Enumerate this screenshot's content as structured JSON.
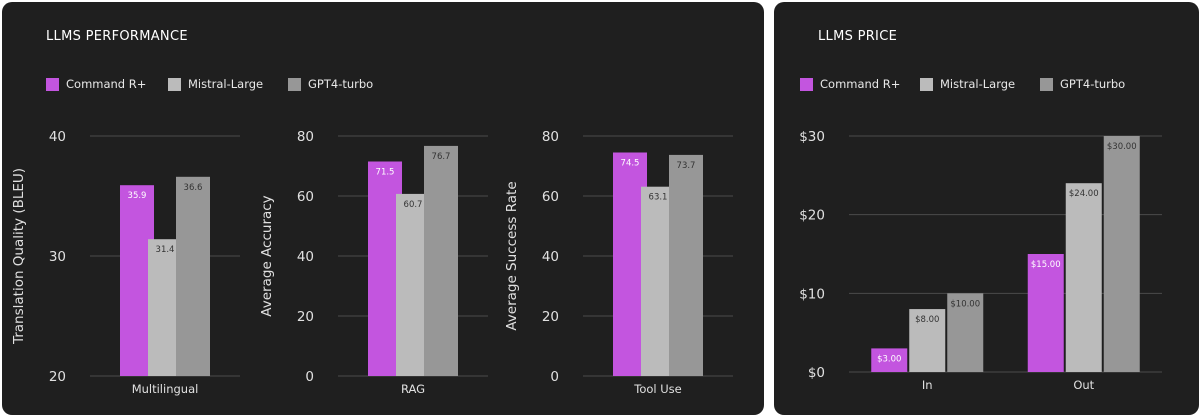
{
  "colors": {
    "command_r_plus": "#c355df",
    "mistral_large": "#bbbbbb",
    "gpt4_turbo": "#979797",
    "grid": "#4b4b4b",
    "axis_text": "#e0e0e0",
    "bar_label_light": "#ffffff",
    "bar_label_dark": "#333333"
  },
  "performance": {
    "title": "LLMS PERFORMANCE",
    "legend": [
      "Command R+",
      "Mistral-Large",
      "GPT4-turbo"
    ]
  },
  "price": {
    "title": "LLMS PRICE",
    "legend": [
      "Command R+",
      "Mistral-Large",
      "GPT4-turbo"
    ]
  },
  "chart_data": [
    {
      "type": "bar",
      "title": "",
      "xlabel": "",
      "ylabel": "Translation Quality (BLEU)",
      "categories": [
        "Multilingual"
      ],
      "ylim": [
        20,
        40
      ],
      "yticks": [
        20,
        30,
        40
      ],
      "ytick_labels": [
        "20",
        "30",
        "40"
      ],
      "series": [
        {
          "name": "Command R+",
          "values": [
            35.9
          ],
          "labels": [
            "35.9"
          ]
        },
        {
          "name": "Mistral-Large",
          "values": [
            31.4
          ],
          "labels": [
            "31.4"
          ]
        },
        {
          "name": "GPT4-turbo",
          "values": [
            36.6
          ],
          "labels": [
            "36.6"
          ]
        }
      ],
      "grid": true,
      "legend": "top-left"
    },
    {
      "type": "bar",
      "title": "",
      "xlabel": "",
      "ylabel": "Average Accuracy",
      "categories": [
        "RAG"
      ],
      "ylim": [
        0,
        80
      ],
      "yticks": [
        0,
        20,
        40,
        60,
        80
      ],
      "ytick_labels": [
        "0",
        "20",
        "40",
        "60",
        "80"
      ],
      "series": [
        {
          "name": "Command R+",
          "values": [
            71.5
          ],
          "labels": [
            "71.5"
          ]
        },
        {
          "name": "Mistral-Large",
          "values": [
            60.7
          ],
          "labels": [
            "60.7"
          ]
        },
        {
          "name": "GPT4-turbo",
          "values": [
            76.7
          ],
          "labels": [
            "76.7"
          ]
        }
      ],
      "grid": true,
      "legend": "top-left"
    },
    {
      "type": "bar",
      "title": "",
      "xlabel": "",
      "ylabel": "Average Success Rate",
      "categories": [
        "Tool Use"
      ],
      "ylim": [
        0,
        80
      ],
      "yticks": [
        0,
        20,
        40,
        60,
        80
      ],
      "ytick_labels": [
        "0",
        "20",
        "40",
        "60",
        "80"
      ],
      "series": [
        {
          "name": "Command R+",
          "values": [
            74.5
          ],
          "labels": [
            "74.5"
          ]
        },
        {
          "name": "Mistral-Large",
          "values": [
            63.1
          ],
          "labels": [
            "63.1"
          ]
        },
        {
          "name": "GPT4-turbo",
          "values": [
            73.7
          ],
          "labels": [
            "73.7"
          ]
        }
      ],
      "grid": true,
      "legend": "top-left"
    },
    {
      "type": "bar",
      "title": "",
      "xlabel": "",
      "ylabel": "",
      "categories": [
        "In",
        "Out"
      ],
      "ylim": [
        0,
        30
      ],
      "yticks": [
        0,
        10,
        20,
        30
      ],
      "ytick_labels": [
        "$0",
        "$10",
        "$20",
        "$30"
      ],
      "series": [
        {
          "name": "Command R+",
          "values": [
            3,
            15
          ],
          "labels": [
            "$3.00",
            "$15.00"
          ]
        },
        {
          "name": "Mistral-Large",
          "values": [
            8,
            24
          ],
          "labels": [
            "$8.00",
            "$24.00"
          ]
        },
        {
          "name": "GPT4-turbo",
          "values": [
            10,
            30
          ],
          "labels": [
            "$10.00",
            "$30.00"
          ]
        }
      ],
      "grid": true,
      "legend": "top-left"
    }
  ]
}
